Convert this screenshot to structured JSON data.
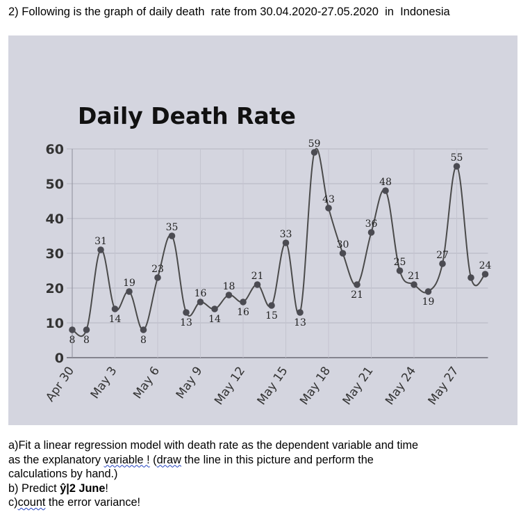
{
  "heading": "2) Following is the graph of daily death  rate from 30.04.2020-27.05.2020  in  Indonesia",
  "chart_data": {
    "type": "line",
    "title": "Daily Death Rate",
    "xlabel": "",
    "ylabel": "",
    "ylim": [
      0,
      60
    ],
    "yticks": [
      "0",
      "10",
      "20",
      "30",
      "40",
      "50",
      "60"
    ],
    "x_tick_labels": [
      "Apr 30",
      "May 3",
      "May 6",
      "May 9",
      "May 12",
      "May 15",
      "May 18",
      "May 21",
      "May 24",
      "May 27"
    ],
    "categories": [
      "Apr 30",
      "May 1",
      "May 2",
      "May 3",
      "May 4",
      "May 5",
      "May 6",
      "May 7",
      "May 8",
      "May 9",
      "May 10",
      "May 11",
      "May 12",
      "May 13",
      "May 14",
      "May 15",
      "May 16",
      "May 17",
      "May 18",
      "May 19",
      "May 20",
      "May 21",
      "May 22",
      "May 23",
      "May 24",
      "May 25",
      "May 26",
      "May 27",
      "May 28",
      "May 29"
    ],
    "values": [
      8,
      8,
      31,
      14,
      19,
      8,
      23,
      35,
      13,
      16,
      14,
      18,
      16,
      21,
      15,
      33,
      13,
      59,
      43,
      30,
      21,
      36,
      48,
      25,
      21,
      19,
      27,
      55,
      23,
      24
    ],
    "data_labels": [
      "8",
      "8",
      "31",
      "14",
      "19",
      "8",
      "23",
      "35",
      "13",
      "16",
      "14",
      "18",
      "16",
      "21",
      "15",
      "33",
      "13",
      "59",
      "43",
      "30",
      "21",
      "36",
      "48",
      "25",
      "21",
      "19",
      "27",
      "55",
      "",
      "24"
    ],
    "grid": true,
    "legend": "none"
  },
  "questions": {
    "a_prefix": "a)",
    "a_text_1": "Fit a linear regression model with death rate as the dependent variable and time",
    "a_text_2a": "as the explanatory ",
    "a_text_2b": "variable !",
    "a_text_2c": " (",
    "a_text_2d": "draw",
    "a_text_2e": " the line in this picture and perform the",
    "a_text_3": "calculations by hand.)",
    "b_prefix": "b)",
    "b_text": " Predict ",
    "b_bold": "ŷ|2 June",
    "b_end": "!",
    "c_prefix": "c)",
    "c_wavy": "count",
    "c_text": " the error variance!"
  }
}
